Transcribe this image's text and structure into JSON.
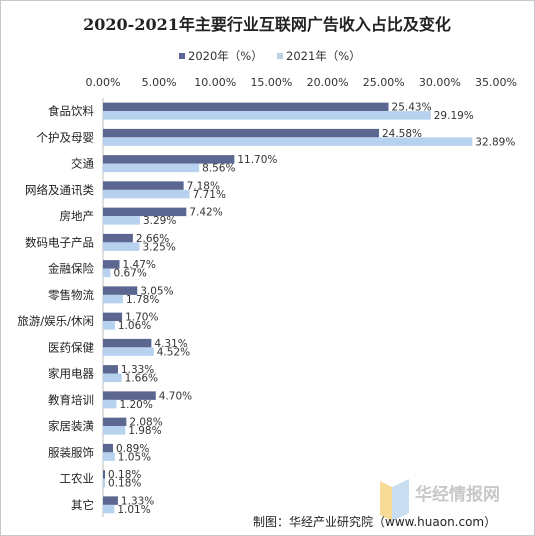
{
  "chart_data": {
    "type": "bar",
    "orientation": "horizontal",
    "title": "2020-2021年主要行业互联网广告收入占比及变化",
    "categories": [
      "食品饮料",
      "个护及母婴",
      "交通",
      "网络及通讯类",
      "房地产",
      "数码电子产品",
      "金融保险",
      "零售物流",
      "旅游/娱乐/休闲",
      "医药保健",
      "家用电器",
      "教育培训",
      "家居装潢",
      "服装服饰",
      "工农业",
      "其它"
    ],
    "series": [
      {
        "name": "2020年（%）",
        "color": "#5b6790",
        "values": [
          25.43,
          24.58,
          11.7,
          7.18,
          7.42,
          2.66,
          1.47,
          3.05,
          1.7,
          4.31,
          1.33,
          4.7,
          2.08,
          0.89,
          0.18,
          1.33
        ]
      },
      {
        "name": "2021年（%）",
        "color": "#b7d2ef",
        "values": [
          29.19,
          32.89,
          8.56,
          7.71,
          3.29,
          3.25,
          0.67,
          1.78,
          1.06,
          4.52,
          1.66,
          1.2,
          1.98,
          1.05,
          0.18,
          1.01
        ]
      }
    ],
    "value_labels": [
      [
        "25.43%",
        "24.58%",
        "11.70%",
        "7.18%",
        "7.42%",
        "2.66%",
        "1.47%",
        "3.05%",
        "1.70%",
        "4.31%",
        "1.33%",
        "4.70%",
        "2.08%",
        "0.89%",
        "0.18%",
        "1.33%"
      ],
      [
        "29.19%",
        "32.89%",
        "8.56%",
        "7.71%",
        "3.29%",
        "3.25%",
        "0.67%",
        "1.78%",
        "1.06%",
        "4.52%",
        "1.66%",
        "1.20%",
        "1.98%",
        "1.05%",
        "0.18%",
        "1.01%"
      ]
    ],
    "x_ticks": [
      0,
      5,
      10,
      15,
      20,
      25,
      30,
      35
    ],
    "x_tick_labels": [
      "0.00%",
      "5.00%",
      "10.00%",
      "15.00%",
      "20.00%",
      "25.00%",
      "30.00%",
      "35.00%"
    ],
    "xlim": [
      0,
      35
    ],
    "axis_position": "top",
    "grid": false,
    "legend_position": "top"
  },
  "source_note": "制图：华经产业研究院（www.huaon.com）",
  "watermark_text": "华经情报网"
}
